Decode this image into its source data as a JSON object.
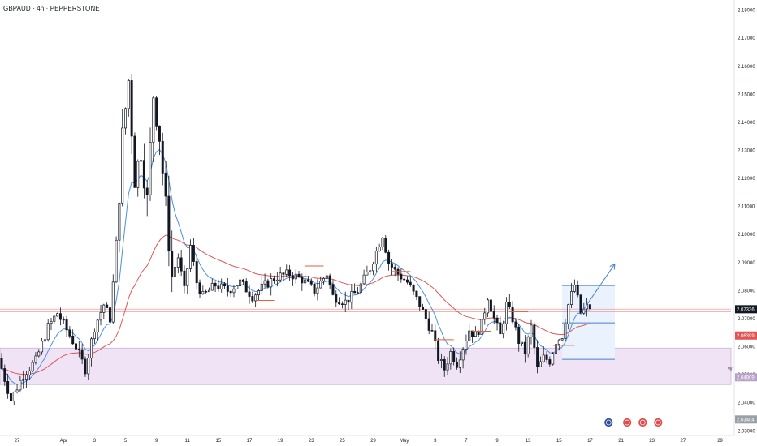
{
  "header": {
    "title": "GBPAUD · 4h · PEPPERSTONE"
  },
  "colors": {
    "up": "#131722",
    "down": "#131722",
    "ema_fast": "#4a90e2",
    "ema_slow": "#e05555",
    "zone_fill": "#efe3f5",
    "zone_border": "#c9b2d6",
    "levels": "#e85d3a",
    "box": "#4a7fd4",
    "box_fill": "#eaf2fd",
    "badge_red": "#e04a4a",
    "badge_blue": "#2b4c9b",
    "badge_gray": "#3a3a3a"
  },
  "chart_data": {
    "type": "candlestick",
    "ylim": [
      2.0295,
      2.1825
    ],
    "yticks": [
      "2.03000",
      "2.04000",
      "2.05000",
      "2.06000",
      "2.07000",
      "2.08000",
      "2.09000",
      "2.10000",
      "2.11000",
      "2.12000",
      "2.13000",
      "2.14000",
      "2.15000",
      "2.16000",
      "2.17000",
      "2.18000"
    ],
    "ytick_values": [
      2.03,
      2.04,
      2.05,
      2.06,
      2.07,
      2.08,
      2.09,
      2.1,
      2.11,
      2.12,
      2.13,
      2.14,
      2.15,
      2.16,
      2.17,
      2.18
    ],
    "xlim": [
      0,
      235
    ],
    "xticks": [
      {
        "label": "27",
        "x": 5
      },
      {
        "label": "Apr",
        "x": 20
      },
      {
        "label": "3",
        "x": 30
      },
      {
        "label": "5",
        "x": 40
      },
      {
        "label": "9",
        "x": 50
      },
      {
        "label": "11",
        "x": 60
      },
      {
        "label": "15",
        "x": 70
      },
      {
        "label": "17",
        "x": 80
      },
      {
        "label": "19",
        "x": 90
      },
      {
        "label": "23",
        "x": 100
      },
      {
        "label": "25",
        "x": 110
      },
      {
        "label": "29",
        "x": 120
      },
      {
        "label": "May",
        "x": 130
      },
      {
        "label": "3",
        "x": 140
      },
      {
        "label": "7",
        "x": 150
      },
      {
        "label": "9",
        "x": 160
      },
      {
        "label": "13",
        "x": 170
      },
      {
        "label": "15",
        "x": 180
      },
      {
        "label": "17",
        "x": 190
      },
      {
        "label": "21",
        "x": 200
      },
      {
        "label": "23",
        "x": 210
      },
      {
        "label": "27",
        "x": 220
      },
      {
        "label": "29",
        "x": 232
      }
    ],
    "anchors": [
      [
        0,
        2.056
      ],
      [
        4,
        2.041
      ],
      [
        8,
        2.05
      ],
      [
        12,
        2.055
      ],
      [
        16,
        2.067
      ],
      [
        19,
        2.072
      ],
      [
        22,
        2.066
      ],
      [
        25,
        2.06
      ],
      [
        28,
        2.052
      ],
      [
        31,
        2.067
      ],
      [
        34,
        2.075
      ],
      [
        36,
        2.07
      ],
      [
        38,
        2.095
      ],
      [
        40,
        2.135
      ],
      [
        42,
        2.155
      ],
      [
        44,
        2.12
      ],
      [
        46,
        2.13
      ],
      [
        48,
        2.112
      ],
      [
        50,
        2.15
      ],
      [
        52,
        2.135
      ],
      [
        54,
        2.11
      ],
      [
        56,
        2.085
      ],
      [
        58,
        2.092
      ],
      [
        60,
        2.08
      ],
      [
        62,
        2.096
      ],
      [
        64,
        2.083
      ],
      [
        66,
        2.078
      ],
      [
        70,
        2.082
      ],
      [
        74,
        2.08
      ],
      [
        78,
        2.083
      ],
      [
        82,
        2.078
      ],
      [
        86,
        2.082
      ],
      [
        90,
        2.085
      ],
      [
        94,
        2.086
      ],
      [
        98,
        2.084
      ],
      [
        102,
        2.08
      ],
      [
        106,
        2.086
      ],
      [
        108,
        2.078
      ],
      [
        112,
        2.076
      ],
      [
        116,
        2.08
      ],
      [
        120,
        2.088
      ],
      [
        124,
        2.1
      ],
      [
        126,
        2.09
      ],
      [
        128,
        2.087
      ],
      [
        132,
        2.083
      ],
      [
        136,
        2.075
      ],
      [
        140,
        2.065
      ],
      [
        142,
        2.056
      ],
      [
        144,
        2.052
      ],
      [
        146,
        2.058
      ],
      [
        148,
        2.054
      ],
      [
        150,
        2.06
      ],
      [
        152,
        2.066
      ],
      [
        154,
        2.064
      ],
      [
        156,
        2.068
      ],
      [
        158,
        2.078
      ],
      [
        160,
        2.07
      ],
      [
        162,
        2.064
      ],
      [
        164,
        2.075
      ],
      [
        166,
        2.07
      ],
      [
        168,
        2.062
      ],
      [
        170,
        2.058
      ],
      [
        172,
        2.067
      ],
      [
        174,
        2.052
      ],
      [
        176,
        2.056
      ],
      [
        178,
        2.055
      ],
      [
        180,
        2.062
      ],
      [
        182,
        2.064
      ],
      [
        184,
        2.075
      ],
      [
        186,
        2.082
      ],
      [
        188,
        2.072
      ],
      [
        190,
        2.074
      ]
    ],
    "count": 191,
    "seed": 7,
    "ema_fast_period": 9,
    "ema_slow_period": 40,
    "zone": [
      2.0465,
      2.0595
    ],
    "box": {
      "x0": 181,
      "x1": 198,
      "top": 2.0818,
      "mid": 2.0685,
      "bottom": 2.0555
    },
    "arrow": {
      "from": [
        187,
        2.0718
      ],
      "to": [
        198,
        2.0895
      ]
    },
    "levels": [
      {
        "x0": 20,
        "x1": 27,
        "y": 2.0635
      },
      {
        "x0": 98,
        "x1": 104,
        "y": 2.0888
      },
      {
        "x0": 126,
        "x1": 132,
        "y": 2.0868
      },
      {
        "x0": 140,
        "x1": 146,
        "y": 2.0625
      },
      {
        "x0": 152,
        "x1": 158,
        "y": 2.0655
      },
      {
        "x0": 164,
        "x1": 170,
        "y": 2.0725
      },
      {
        "x0": 178,
        "x1": 185,
        "y": 2.0605
      },
      {
        "x0": 82,
        "x1": 88,
        "y": 2.0765
      }
    ],
    "hlines": [
      2.0724,
      2.0734
    ],
    "price_labels": [
      {
        "text": "2.07336",
        "value": 2.07336,
        "color": "#131722"
      },
      {
        "text": "2.06399",
        "value": 2.06399,
        "color": "#e05555"
      },
      {
        "text": "2.04909",
        "value": 2.04909,
        "color": "#b8a0c8"
      },
      {
        "text": "2.03404",
        "value": 2.03404,
        "color": "#9aa0a8"
      }
    ],
    "side_letter": "W",
    "badges": [
      {
        "x": 196,
        "kind": "blue"
      },
      {
        "x": 202,
        "kind": "red"
      },
      {
        "x": 207,
        "kind": "red"
      },
      {
        "x": 212,
        "kind": "red"
      }
    ]
  }
}
